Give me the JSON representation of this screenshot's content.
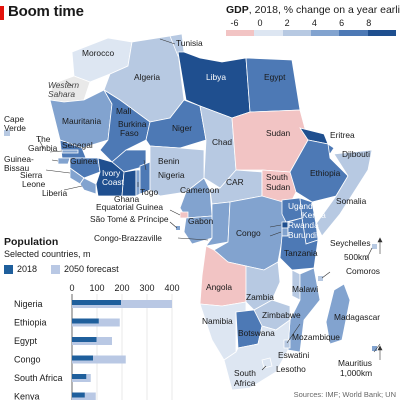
{
  "title": "Boom time",
  "legend": {
    "title_bold": "GDP",
    "title_rest": ", 2018, % change on a year earlier",
    "ticks": [
      "-6",
      "0",
      "2",
      "4",
      "6",
      "8"
    ],
    "bins": [
      {
        "range": "-6 to 0",
        "color": "#f2c4c4"
      },
      {
        "range": "0 to 2",
        "color": "#dde6f2"
      },
      {
        "range": "2 to 4",
        "color": "#b7c9e2"
      },
      {
        "range": "4 to 6",
        "color": "#82a3cf"
      },
      {
        "range": "6 to 8",
        "color": "#4d79b5"
      },
      {
        "range": "8+",
        "color": "#1f4f8f"
      }
    ]
  },
  "map_labels": {
    "tunisia": "Tunisia",
    "morocco": "Morocco",
    "algeria": "Algeria",
    "libya": "Libya",
    "egypt": "Egypt",
    "western_sahara_1": "Western",
    "western_sahara_2": "Sahara",
    "cape_verde_1": "Cape",
    "cape_verde_2": "Verde",
    "mauritania": "Mauritania",
    "mali": "Mali",
    "burkina_1": "Burkina",
    "burkina_2": "Faso",
    "niger": "Niger",
    "chad": "Chad",
    "sudan": "Sudan",
    "eritrea": "Eritrea",
    "djibouti": "Djibouti",
    "the_gambia_1": "The",
    "the_gambia_2": "Gambia",
    "senegal": "Senegal",
    "guinea_bissau_1": "Guinea-",
    "guinea_bissau_2": "Bissau",
    "guinea": "Guinea",
    "sierra_leone_1": "Sierra",
    "sierra_leone_2": "Leone",
    "liberia": "Liberia",
    "ivory_coast_1": "Ivory",
    "ivory_coast_2": "Coast",
    "ghana": "Ghana",
    "togo": "Togo",
    "benin": "Benin",
    "nigeria": "Nigeria",
    "cameroon": "Cameroon",
    "car": "CAR",
    "south_sudan_1": "South",
    "south_sudan_2": "Sudan",
    "ethiopia": "Ethiopia",
    "somalia": "Somalia",
    "equatorial_guinea": "Equatorial Guinea",
    "sao_tome": "São Tomé & Príncipe",
    "gabon": "Gabon",
    "congo_brazzaville": "Congo-Brazzaville",
    "congo": "Congo",
    "uganda": "Uganda",
    "kenya": "Kenya",
    "rwanda": "Rwanda",
    "burundi": "Burundi",
    "tanzania": "Tanzania",
    "seychelles": "Seychelles",
    "scale_500": "500km",
    "comoros": "Comoros",
    "angola": "Angola",
    "zambia": "Zambia",
    "malawi": "Malawi",
    "madagascar": "Madagascar",
    "zimbabwe": "Zimbabwe",
    "namibia": "Namibia",
    "botswana": "Botswana",
    "mozambique": "Mozambique",
    "eswatini": "Eswatini",
    "mauritius": "Mauritius",
    "scale_1000": "1,000km",
    "lesotho": "Lesotho",
    "south_africa_1": "South",
    "south_africa_2": "Africa"
  },
  "population": {
    "title": "Population",
    "subtitle": "Selected countries, m",
    "legend_2018": "2018",
    "legend_2050": "2050 forecast",
    "color_2018": "#1f5f9c",
    "color_2050": "#b9c8e4"
  },
  "chart_data": {
    "type": "bar",
    "orientation": "horizontal",
    "title": "Population",
    "subtitle": "Selected countries, m",
    "categories": [
      "Nigeria",
      "Ethiopia",
      "Egypt",
      "Congo",
      "South Africa",
      "Kenya"
    ],
    "series": [
      {
        "name": "2018",
        "values": [
          196,
          107,
          98,
          84,
          57,
          51
        ]
      },
      {
        "name": "2050 forecast",
        "values": [
          400,
          191,
          160,
          215,
          75,
          95
        ]
      }
    ],
    "xticks": [
      "0",
      "100",
      "200",
      "300",
      "400"
    ],
    "xlim": [
      0,
      400
    ],
    "grid": true
  },
  "source": "Sources: IMF; World Bank; UN"
}
